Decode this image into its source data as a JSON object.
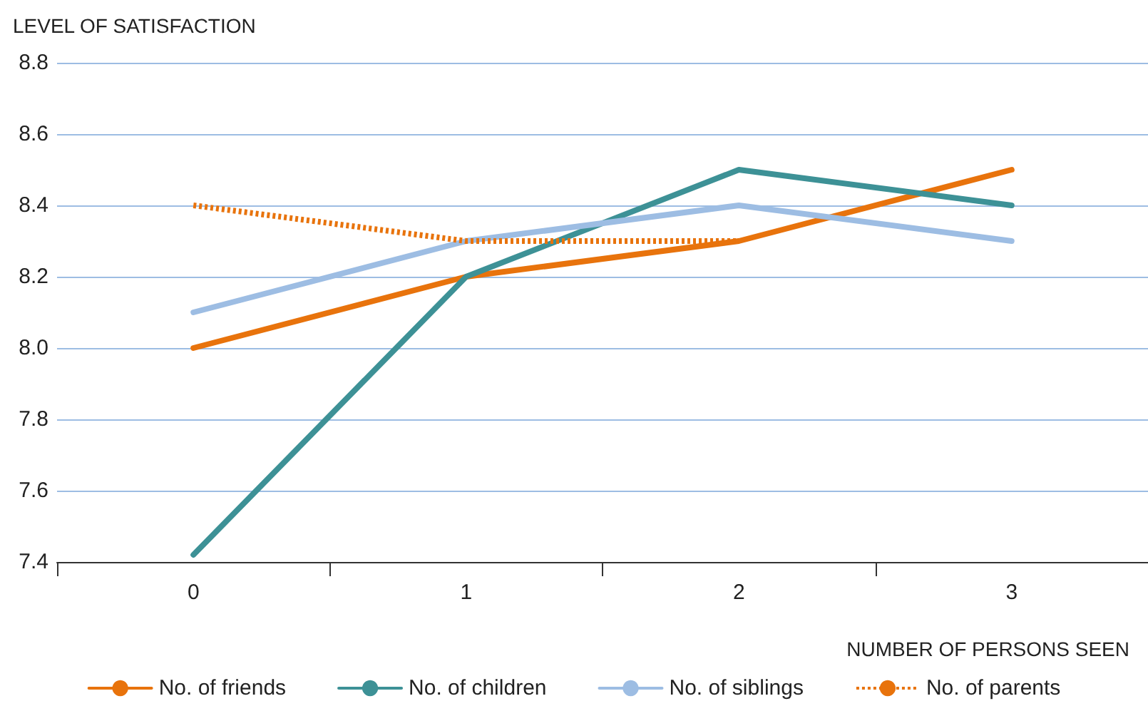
{
  "chart_data": {
    "type": "line",
    "xlabel": "NUMBER OF PERSONS SEEN",
    "ylabel": "LEVEL OF SATISFACTION",
    "categories": [
      "0",
      "1",
      "2",
      "3"
    ],
    "series": [
      {
        "name": "No. of friends",
        "color": "#e8730c",
        "values": [
          8.0,
          8.2,
          8.3,
          8.5
        ]
      },
      {
        "name": "No. of children",
        "color": "#3d9196",
        "values": [
          7.42,
          8.2,
          8.5,
          8.4
        ]
      },
      {
        "name": "No. of siblings",
        "color": "#9dbde3",
        "values": [
          8.1,
          8.3,
          8.4,
          8.3
        ]
      },
      {
        "name": "No. of parents",
        "color": "#e8730c",
        "values": [
          8.4,
          8.3,
          8.3,
          null
        ],
        "line_style": "dotted"
      }
    ],
    "ylim": [
      7.4,
      8.8
    ],
    "yticks": [
      {
        "value": 7.4,
        "label": "7.4"
      },
      {
        "value": 7.6,
        "label": "7.6"
      },
      {
        "value": 7.8,
        "label": "7.8"
      },
      {
        "value": 8,
        "label": "8.0"
      },
      {
        "value": 8.2,
        "label": "8.2"
      },
      {
        "value": 8.4,
        "label": "8.4"
      },
      {
        "value": 8.6,
        "label": "8.6"
      },
      {
        "value": 8.8,
        "label": "8.8"
      }
    ],
    "grid": "y",
    "legend": "bottom",
    "marker": "none"
  }
}
